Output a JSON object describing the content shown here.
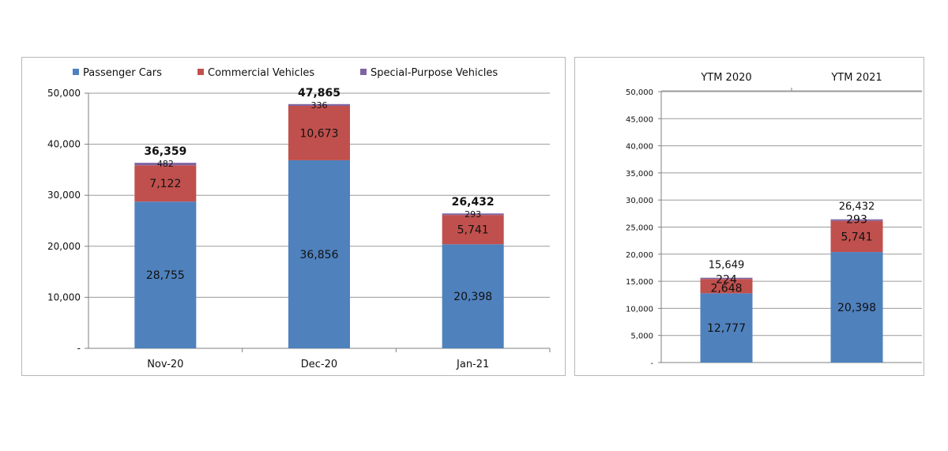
{
  "colors": {
    "passenger": "#4f81bd",
    "commercial": "#c0504d",
    "special": "#8064a2"
  },
  "chart_data": [
    {
      "type": "bar",
      "stacked": true,
      "title": "",
      "legend": [
        "Passenger Cars",
        "Commercial Vehicles",
        "Special-Purpose Vehicles"
      ],
      "legend_position": "top",
      "categories": [
        "Nov-20",
        "Dec-20",
        "Jan-21"
      ],
      "series": [
        {
          "name": "Passenger Cars",
          "values": [
            28755,
            36856,
            20398
          ],
          "labels": [
            "28,755",
            "36,856",
            "20,398"
          ]
        },
        {
          "name": "Commercial Vehicles",
          "values": [
            7122,
            10673,
            5741
          ],
          "labels": [
            "7,122",
            "10,673",
            "5,741"
          ]
        },
        {
          "name": "Special-Purpose Vehicles",
          "values": [
            482,
            336,
            293
          ],
          "labels": [
            "482",
            "336",
            "293"
          ]
        }
      ],
      "totals": [
        "36,359",
        "47,865",
        "26,432"
      ],
      "ylim": [
        0,
        50000
      ],
      "yticks": [
        0,
        10000,
        20000,
        30000,
        40000,
        50000
      ],
      "ytick_labels": [
        "-",
        "10,000",
        "20,000",
        "30,000",
        "40,000",
        "50,000"
      ],
      "xlabel": "",
      "ylabel": "",
      "grid": true
    },
    {
      "type": "bar",
      "stacked": true,
      "title": "",
      "categories": [
        "YTM 2020",
        "YTM 2021"
      ],
      "category_position": "top",
      "series": [
        {
          "name": "Passenger Cars",
          "values": [
            12777,
            20398
          ],
          "labels": [
            "12,777",
            "20,398"
          ]
        },
        {
          "name": "Commercial Vehicles",
          "values": [
            2648,
            5741
          ],
          "labels": [
            "2,648",
            "5,741"
          ]
        },
        {
          "name": "Special-Purpose Vehicles",
          "values": [
            224,
            293
          ],
          "labels": [
            "224",
            "293"
          ]
        }
      ],
      "totals": [
        "15,649",
        "26,432"
      ],
      "ylim": [
        0,
        50000
      ],
      "yticks": [
        0,
        5000,
        10000,
        15000,
        20000,
        25000,
        30000,
        35000,
        40000,
        45000,
        50000
      ],
      "ytick_labels": [
        "-",
        "5,000",
        "10,000",
        "15,000",
        "20,000",
        "25,000",
        "30,000",
        "35,000",
        "40,000",
        "45,000",
        "50,000"
      ],
      "xlabel": "",
      "ylabel": "",
      "grid": true
    }
  ]
}
